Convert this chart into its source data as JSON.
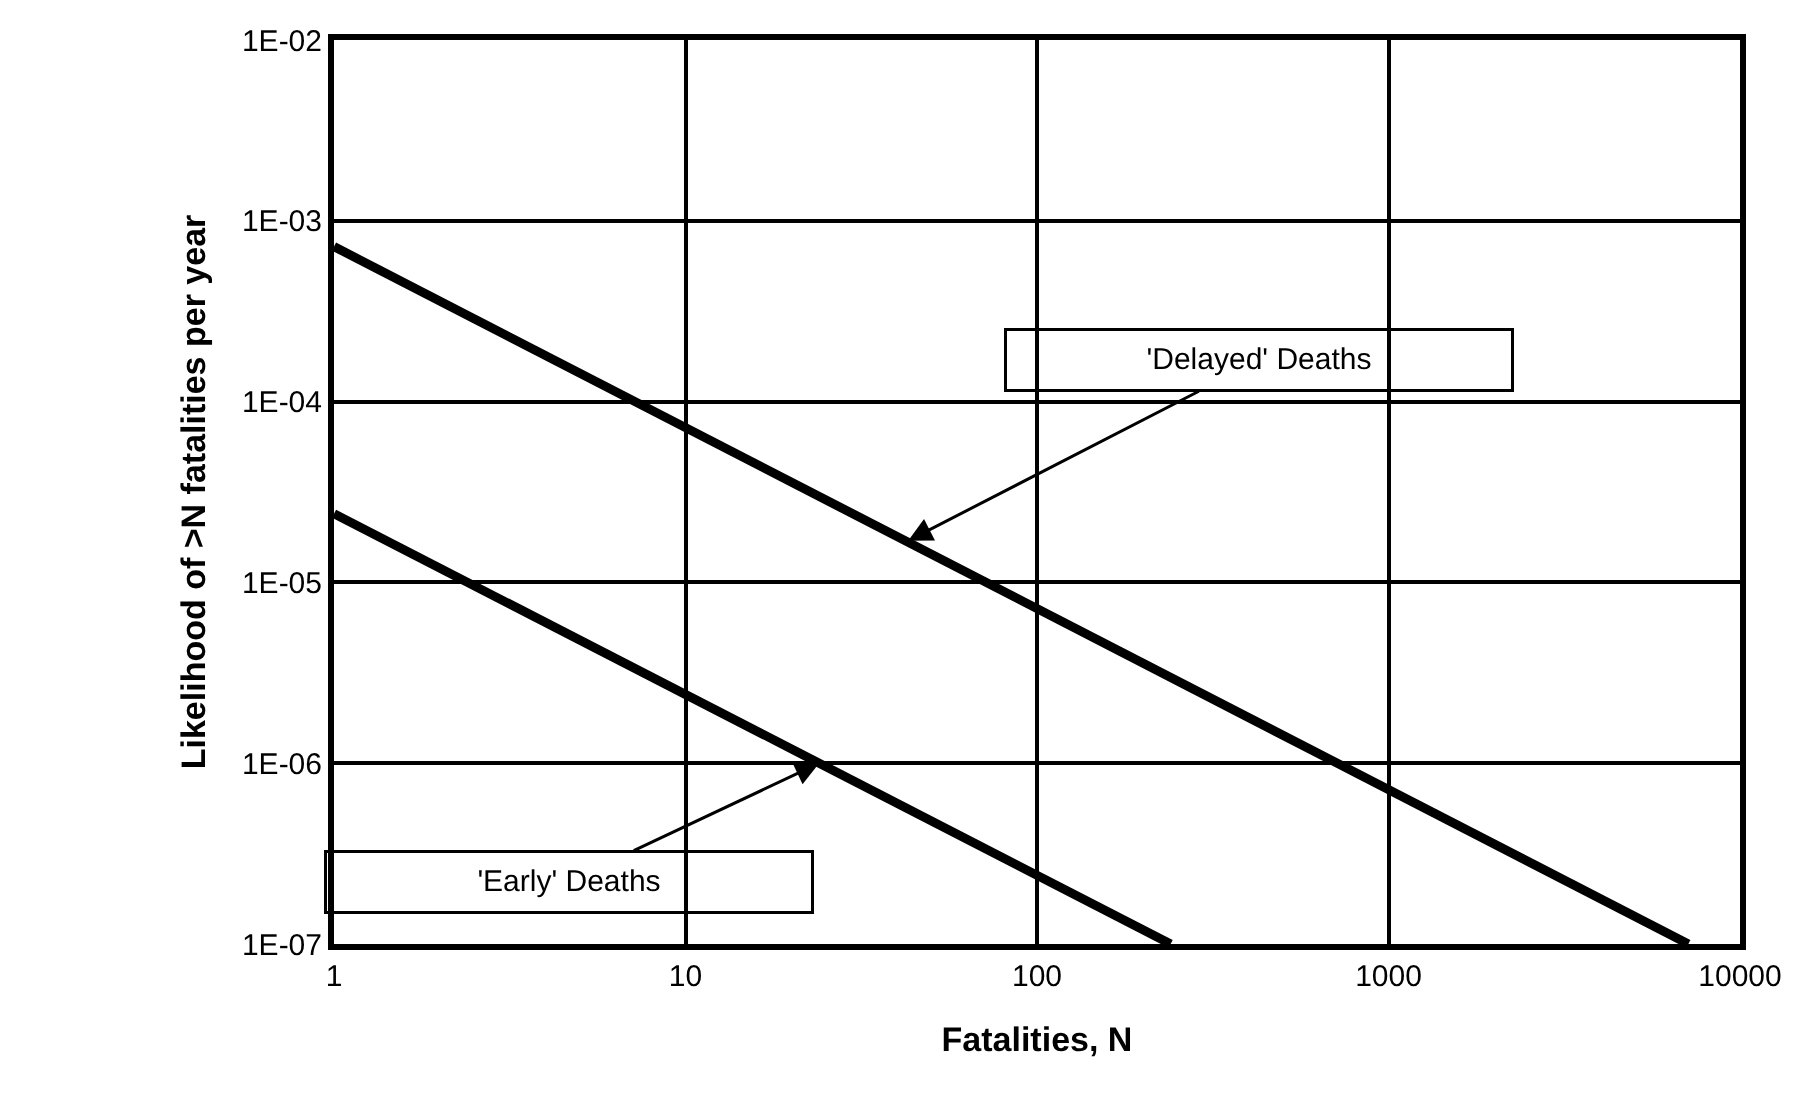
{
  "chart_data": {
    "type": "line",
    "xlabel": "Fatalities, N",
    "ylabel": "Likelihood of >N fatalities per year",
    "log": "xy",
    "grid": true,
    "marker": "none",
    "line_style": "solid",
    "xlim": [
      1,
      10000
    ],
    "xticks": [
      1,
      10,
      100,
      1000,
      10000
    ],
    "ylim": [
      1e-07,
      0.01
    ],
    "yticks": [
      {
        "value": 1e-07,
        "label": "1E-07"
      },
      {
        "value": 1e-06,
        "label": "1E-06"
      },
      {
        "value": 1e-05,
        "label": "1E-05"
      },
      {
        "value": 0.0001,
        "label": "1E-04"
      },
      {
        "value": 0.001,
        "label": "1E-03"
      },
      {
        "value": 0.01,
        "label": "1E-02"
      }
    ],
    "series": [
      {
        "color": "#000000",
        "x": [
          1,
          7130
        ],
        "values": [
          0.00072,
          1e-07
        ]
      },
      {
        "color": "#000000",
        "x": [
          1,
          240
        ],
        "values": [
          2.4e-05,
          1e-07
        ]
      }
    ],
    "annotations": [
      {
        "text": "'Delayed' Deaths",
        "x": 43,
        "y": 1.7e-05
      },
      {
        "text": "'Early' Deaths",
        "x": 24,
        "y": 1e-06
      }
    ]
  }
}
